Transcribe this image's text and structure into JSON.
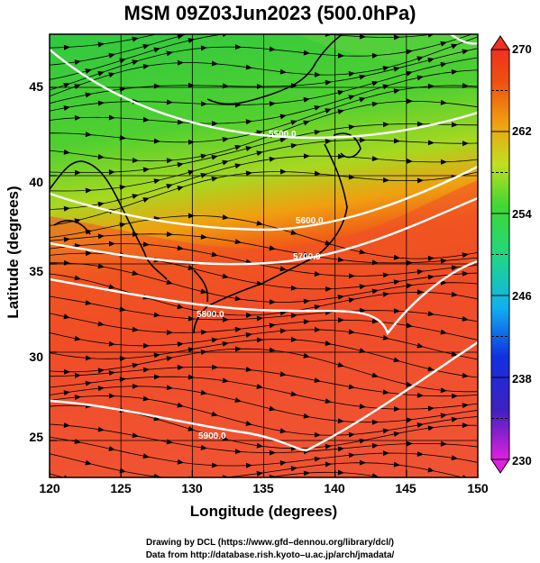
{
  "title": "MSM 09Z03Jun2023 (500.0hPa)",
  "xlabel": "Longitude (degrees)",
  "ylabel": "Latitude  (degrees)",
  "x_ticks": [
    "120",
    "125",
    "130",
    "135",
    "140",
    "145",
    "150"
  ],
  "y_ticks": [
    "25",
    "30",
    "35",
    "40",
    "45"
  ],
  "colorbar": {
    "min": 230,
    "max": 270,
    "ticks": [
      "230",
      "238",
      "246",
      "254",
      "262",
      "270"
    ]
  },
  "contours": {
    "color": "#ffffff",
    "labels": [
      "5500.0",
      "5600.0",
      "5700.0",
      "5800.0",
      "5900.0"
    ]
  },
  "credit": {
    "line1": "Drawing by DCL (https://www.gfd–dennou.org/library/dcl/)",
    "line2": "Data from http://database.rish.kyoto–u.ac.jp/arch/jmadata/"
  }
}
